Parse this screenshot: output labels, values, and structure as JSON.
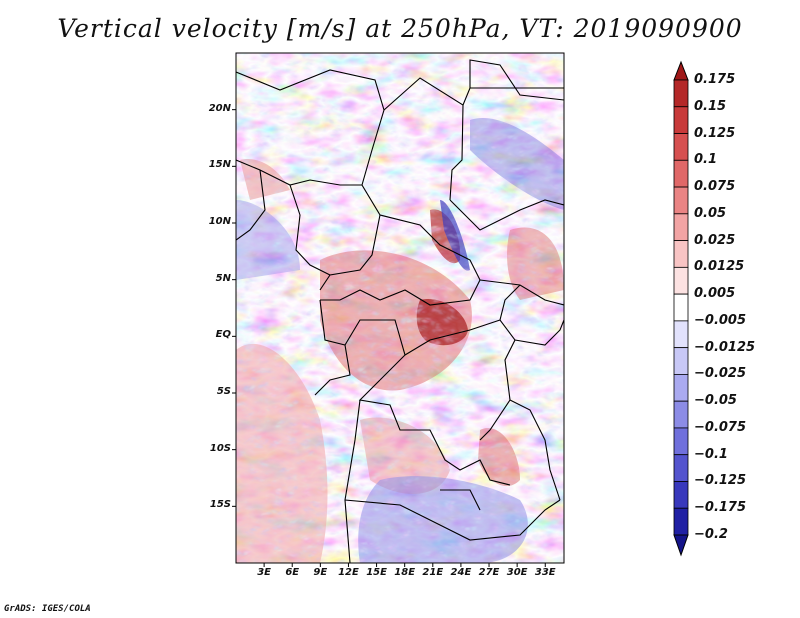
{
  "title": "Vertical velocity [m/s] at 250hPa, VT: 2019090900",
  "credit": "GrADS: IGES/COLA",
  "map": {
    "region": "Central Africa",
    "lon_range": [
      0,
      35
    ],
    "lat_range": [
      -20,
      25
    ],
    "lat_ticks": [
      {
        "label": "20N",
        "value": 20
      },
      {
        "label": "15N",
        "value": 15
      },
      {
        "label": "10N",
        "value": 10
      },
      {
        "label": "5N",
        "value": 5
      },
      {
        "label": "EQ",
        "value": 0
      },
      {
        "label": "5S",
        "value": -5
      },
      {
        "label": "10S",
        "value": -10
      },
      {
        "label": "15S",
        "value": -15
      }
    ],
    "lon_ticks": [
      {
        "label": "3E",
        "value": 3
      },
      {
        "label": "6E",
        "value": 6
      },
      {
        "label": "9E",
        "value": 9
      },
      {
        "label": "12E",
        "value": 12
      },
      {
        "label": "15E",
        "value": 15
      },
      {
        "label": "18E",
        "value": 18
      },
      {
        "label": "21E",
        "value": 21
      },
      {
        "label": "24E",
        "value": 24
      },
      {
        "label": "27E",
        "value": 27
      },
      {
        "label": "30E",
        "value": 30
      },
      {
        "label": "33E",
        "value": 33
      }
    ],
    "border_color": "#000000"
  },
  "colorbar": {
    "labels": [
      "0.175",
      "0.15",
      "0.125",
      "0.1",
      "0.075",
      "0.05",
      "0.025",
      "0.0125",
      "0.005",
      "−0.005",
      "−0.0125",
      "−0.025",
      "−0.05",
      "−0.075",
      "−0.1",
      "−0.125",
      "−0.175",
      "−0.2"
    ],
    "colors": [
      "#a01818",
      "#b42828",
      "#c83a3a",
      "#d65050",
      "#e06868",
      "#ea8484",
      "#f2a4a4",
      "#f8c4c4",
      "#fce2e2",
      "#ffffff",
      "#e2e2fc",
      "#c8c8f6",
      "#aaaaf0",
      "#8c8ce6",
      "#7070dc",
      "#5454ce",
      "#3838bc",
      "#2020a4",
      "#14148a"
    ]
  }
}
